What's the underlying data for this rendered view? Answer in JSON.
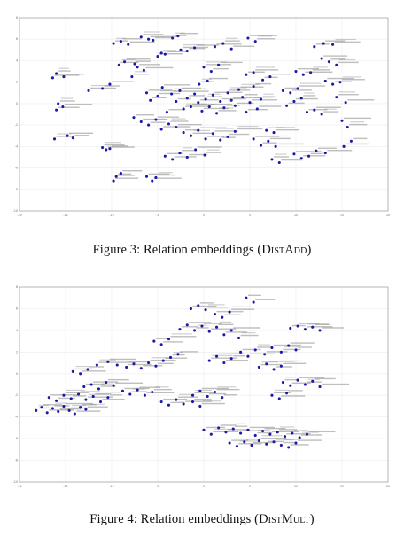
{
  "figures": [
    {
      "id": "fig3",
      "caption_prefix": "Figure 3: Relation embeddings (",
      "caption_model": "DistAdd",
      "caption_suffix": ")",
      "chart_data": {
        "type": "scatter",
        "title": "",
        "xlabel": "",
        "ylabel": "",
        "xlim": [
          -20,
          20
        ],
        "ylim": [
          -10,
          8
        ],
        "xticks": [
          -20,
          -15,
          -10,
          -5,
          0,
          5,
          10,
          15,
          20
        ],
        "yticks": [
          -10,
          -8,
          -6,
          -4,
          -2,
          0,
          2,
          4,
          6,
          8
        ],
        "grid": true,
        "marker_color": "#1a1aa6",
        "label_color": "#888888",
        "points": [
          [
            -16,
            2.8
          ],
          [
            -15.2,
            2.5
          ],
          [
            -16.4,
            2.4
          ],
          [
            -15.8,
            0.0
          ],
          [
            -16.0,
            -0.6
          ],
          [
            -15.3,
            -0.3
          ],
          [
            -16.2,
            -3.3
          ],
          [
            -14.8,
            -3.0
          ],
          [
            -14.2,
            -3.2
          ],
          [
            -11.0,
            -4.1
          ],
          [
            -10.6,
            -4.3
          ],
          [
            -10.2,
            -4.2
          ],
          [
            -9.8,
            -7.2
          ],
          [
            -9.5,
            -6.8
          ],
          [
            -9.0,
            -6.5
          ],
          [
            -12.5,
            1.2
          ],
          [
            -11.0,
            1.4
          ],
          [
            -10.2,
            1.8
          ],
          [
            -9.8,
            5.6
          ],
          [
            -9.0,
            5.8
          ],
          [
            -8.2,
            5.5
          ],
          [
            -7.8,
            2.5
          ],
          [
            -7.2,
            3.4
          ],
          [
            -6.5,
            3.1
          ],
          [
            -9.2,
            3.6
          ],
          [
            -8.6,
            3.9
          ],
          [
            -7.5,
            3.7
          ],
          [
            -6.8,
            6.2
          ],
          [
            -6.0,
            6.0
          ],
          [
            -5.5,
            5.9
          ],
          [
            -5.0,
            4.4
          ],
          [
            -4.6,
            4.7
          ],
          [
            -4.2,
            4.6
          ],
          [
            -2.5,
            5.0
          ],
          [
            -1.8,
            4.9
          ],
          [
            -1.0,
            5.2
          ],
          [
            -3.4,
            6.1
          ],
          [
            -2.8,
            6.3
          ],
          [
            1.2,
            5.3
          ],
          [
            2.1,
            5.6
          ],
          [
            3.0,
            5.1
          ],
          [
            4.8,
            6.1
          ],
          [
            5.6,
            5.8
          ],
          [
            -6.2,
            1.0
          ],
          [
            -5.8,
            0.3
          ],
          [
            -5.0,
            0.7
          ],
          [
            -4.5,
            1.5
          ],
          [
            -4.0,
            -0.8
          ],
          [
            -3.5,
            0.9
          ],
          [
            -3.0,
            0.2
          ],
          [
            -2.6,
            1.2
          ],
          [
            -2.2,
            -0.5
          ],
          [
            -1.8,
            0.5
          ],
          [
            -1.4,
            -0.3
          ],
          [
            -1.0,
            0.9
          ],
          [
            -0.6,
            0.1
          ],
          [
            -0.2,
            -0.7
          ],
          [
            0.2,
            0.4
          ],
          [
            0.6,
            -0.3
          ],
          [
            1.0,
            0.8
          ],
          [
            1.4,
            -0.9
          ],
          [
            1.8,
            0.2
          ],
          [
            2.2,
            -0.4
          ],
          [
            2.6,
            1.0
          ],
          [
            3.0,
            0.3
          ],
          [
            3.4,
            -0.2
          ],
          [
            3.8,
            1.3
          ],
          [
            4.2,
            0.6
          ],
          [
            4.6,
            -0.8
          ],
          [
            5.0,
            0.1
          ],
          [
            5.4,
            1.6
          ],
          [
            5.8,
            -0.5
          ],
          [
            6.2,
            0.4
          ],
          [
            -7.6,
            -1.3
          ],
          [
            -6.8,
            -1.7
          ],
          [
            -6.0,
            -2.0
          ],
          [
            -5.2,
            -1.5
          ],
          [
            -4.6,
            -2.4
          ],
          [
            -3.8,
            -1.9
          ],
          [
            -3.0,
            -2.2
          ],
          [
            -2.2,
            -2.7
          ],
          [
            -1.4,
            -3.0
          ],
          [
            -0.6,
            -2.5
          ],
          [
            0.2,
            -3.3
          ],
          [
            1.0,
            -2.8
          ],
          [
            1.8,
            -3.4
          ],
          [
            2.6,
            -3.1
          ],
          [
            3.4,
            -2.6
          ],
          [
            -4.2,
            -4.9
          ],
          [
            -3.4,
            -5.2
          ],
          [
            -2.6,
            -4.6
          ],
          [
            -1.8,
            -5.0
          ],
          [
            -0.9,
            -4.3
          ],
          [
            0.1,
            -4.8
          ],
          [
            -6.2,
            -6.8
          ],
          [
            -5.6,
            -7.2
          ],
          [
            -5.2,
            -6.9
          ],
          [
            5.4,
            -3.3
          ],
          [
            6.2,
            -3.9
          ],
          [
            7.0,
            -3.5
          ],
          [
            7.8,
            -4.0
          ],
          [
            6.8,
            -2.5
          ],
          [
            7.6,
            -2.7
          ],
          [
            8.6,
            1.2
          ],
          [
            9.4,
            1.0
          ],
          [
            10.2,
            1.4
          ],
          [
            9.0,
            -0.2
          ],
          [
            9.8,
            0.2
          ],
          [
            10.6,
            0.5
          ],
          [
            11.2,
            -0.8
          ],
          [
            12.0,
            -0.6
          ],
          [
            12.8,
            -1.0
          ],
          [
            10.0,
            3.0
          ],
          [
            10.8,
            2.7
          ],
          [
            11.6,
            2.9
          ],
          [
            12.8,
            4.2
          ],
          [
            13.6,
            3.9
          ],
          [
            14.4,
            3.6
          ],
          [
            13.2,
            2.1
          ],
          [
            14.0,
            1.8
          ],
          [
            14.8,
            2.0
          ],
          [
            12.0,
            5.3
          ],
          [
            13.0,
            5.6
          ],
          [
            14.0,
            5.5
          ],
          [
            9.8,
            -4.7
          ],
          [
            10.6,
            -5.1
          ],
          [
            11.4,
            -4.9
          ],
          [
            12.2,
            -4.4
          ],
          [
            13.2,
            -4.6
          ],
          [
            7.4,
            -5.2
          ],
          [
            8.2,
            -5.5
          ],
          [
            15.0,
            -1.6
          ],
          [
            15.6,
            -2.2
          ],
          [
            15.2,
            -4.0
          ],
          [
            16.0,
            -3.5
          ],
          [
            14.4,
            0.6
          ],
          [
            15.4,
            0.1
          ],
          [
            4.6,
            2.7
          ],
          [
            5.4,
            2.9
          ],
          [
            6.4,
            2.2
          ],
          [
            7.2,
            2.5
          ],
          [
            0.0,
            3.4
          ],
          [
            0.8,
            3.0
          ],
          [
            1.6,
            3.6
          ],
          [
            -0.5,
            1.8
          ],
          [
            0.4,
            2.1
          ]
        ]
      }
    },
    {
      "id": "fig4",
      "caption_prefix": "Figure 4: Relation embeddings (",
      "caption_model": "DistMult",
      "caption_suffix": ")",
      "chart_data": {
        "type": "scatter",
        "title": "",
        "xlabel": "",
        "ylabel": "",
        "xlim": [
          -20,
          20
        ],
        "ylim": [
          -10,
          8
        ],
        "xticks": [
          -20,
          -15,
          -10,
          -5,
          0,
          5,
          10,
          15,
          20
        ],
        "yticks": [
          -10,
          -8,
          -6,
          -4,
          -2,
          0,
          2,
          4,
          6,
          8
        ],
        "grid": true,
        "marker_color": "#1a1aa6",
        "label_color": "#888888",
        "points": [
          [
            -18.2,
            -3.4
          ],
          [
            -17.6,
            -3.1
          ],
          [
            -17.0,
            -3.6
          ],
          [
            -16.4,
            -3.2
          ],
          [
            -15.8,
            -3.5
          ],
          [
            -15.2,
            -3.0
          ],
          [
            -14.6,
            -3.4
          ],
          [
            -14.0,
            -3.7
          ],
          [
            -13.4,
            -3.1
          ],
          [
            -12.8,
            -3.3
          ],
          [
            -16.8,
            -2.2
          ],
          [
            -16.0,
            -2.5
          ],
          [
            -15.2,
            -2.0
          ],
          [
            -14.4,
            -2.3
          ],
          [
            -13.6,
            -1.9
          ],
          [
            -12.8,
            -2.4
          ],
          [
            -12.0,
            -2.1
          ],
          [
            -11.2,
            -2.6
          ],
          [
            -10.4,
            -2.2
          ],
          [
            -13.0,
            -1.2
          ],
          [
            -12.2,
            -1.0
          ],
          [
            -11.4,
            -1.4
          ],
          [
            -10.6,
            -0.8
          ],
          [
            -9.8,
            -1.1
          ],
          [
            -14.2,
            0.2
          ],
          [
            -13.4,
            0.0
          ],
          [
            -12.6,
            0.4
          ],
          [
            -11.6,
            0.8
          ],
          [
            -10.4,
            1.1
          ],
          [
            -9.4,
            0.8
          ],
          [
            -8.4,
            0.6
          ],
          [
            -7.6,
            0.9
          ],
          [
            -6.8,
            0.5
          ],
          [
            -6.0,
            1.0
          ],
          [
            -5.2,
            0.7
          ],
          [
            -4.4,
            1.2
          ],
          [
            -3.6,
            1.5
          ],
          [
            -2.8,
            1.8
          ],
          [
            -8.8,
            -1.6
          ],
          [
            -8.0,
            -1.9
          ],
          [
            -7.2,
            -1.5
          ],
          [
            -6.4,
            -2.0
          ],
          [
            -5.6,
            -1.7
          ],
          [
            -4.6,
            -2.6
          ],
          [
            -3.8,
            -2.9
          ],
          [
            -3.0,
            -2.4
          ],
          [
            -2.2,
            -2.8
          ],
          [
            -1.2,
            -2.6
          ],
          [
            -0.4,
            -3.0
          ],
          [
            -5.4,
            3.0
          ],
          [
            -4.6,
            2.7
          ],
          [
            -3.8,
            3.2
          ],
          [
            -2.6,
            4.1
          ],
          [
            -1.8,
            4.5
          ],
          [
            -1.0,
            4.0
          ],
          [
            -0.2,
            4.4
          ],
          [
            0.6,
            3.9
          ],
          [
            1.4,
            4.3
          ],
          [
            2.2,
            3.6
          ],
          [
            3.0,
            4.0
          ],
          [
            3.8,
            3.3
          ],
          [
            -1.4,
            6.0
          ],
          [
            -0.6,
            6.3
          ],
          [
            0.2,
            5.9
          ],
          [
            1.2,
            5.5
          ],
          [
            2.0,
            5.2
          ],
          [
            2.8,
            5.7
          ],
          [
            4.6,
            7.0
          ],
          [
            5.4,
            6.6
          ],
          [
            0.6,
            1.2
          ],
          [
            1.4,
            1.6
          ],
          [
            2.2,
            1.0
          ],
          [
            3.0,
            1.4
          ],
          [
            4.0,
            2.0
          ],
          [
            4.8,
            1.6
          ],
          [
            5.6,
            2.2
          ],
          [
            6.6,
            1.8
          ],
          [
            7.4,
            2.4
          ],
          [
            8.4,
            2.0
          ],
          [
            9.2,
            2.6
          ],
          [
            10.0,
            2.2
          ],
          [
            6.0,
            0.6
          ],
          [
            6.8,
            0.9
          ],
          [
            7.6,
            0.4
          ],
          [
            8.4,
            0.7
          ],
          [
            9.4,
            4.2
          ],
          [
            10.2,
            4.4
          ],
          [
            11.0,
            4.1
          ],
          [
            11.8,
            4.3
          ],
          [
            12.6,
            4.0
          ],
          [
            8.6,
            -0.8
          ],
          [
            9.4,
            -1.1
          ],
          [
            10.2,
            -0.6
          ],
          [
            11.0,
            -1.0
          ],
          [
            11.8,
            -0.7
          ],
          [
            12.6,
            -1.2
          ],
          [
            7.4,
            -2.0
          ],
          [
            8.2,
            -2.3
          ],
          [
            9.0,
            -1.8
          ],
          [
            -1.2,
            -2.0
          ],
          [
            -0.4,
            -1.6
          ],
          [
            0.4,
            -2.1
          ],
          [
            1.2,
            -1.7
          ],
          [
            2.0,
            -2.2
          ],
          [
            0.0,
            -5.2
          ],
          [
            0.8,
            -5.6
          ],
          [
            1.6,
            -5.0
          ],
          [
            2.4,
            -5.4
          ],
          [
            3.2,
            -5.1
          ],
          [
            4.0,
            -5.5
          ],
          [
            4.8,
            -5.2
          ],
          [
            5.6,
            -5.7
          ],
          [
            6.4,
            -5.3
          ],
          [
            7.2,
            -5.6
          ],
          [
            8.0,
            -5.4
          ],
          [
            8.8,
            -5.8
          ],
          [
            9.6,
            -5.5
          ],
          [
            10.4,
            -5.9
          ],
          [
            11.2,
            -5.6
          ],
          [
            2.8,
            -6.4
          ],
          [
            3.6,
            -6.7
          ],
          [
            4.4,
            -6.3
          ],
          [
            5.2,
            -6.6
          ],
          [
            6.0,
            -6.2
          ],
          [
            6.8,
            -6.5
          ],
          [
            7.6,
            -6.3
          ],
          [
            8.4,
            -6.6
          ],
          [
            9.2,
            -6.8
          ],
          [
            10.0,
            -6.4
          ]
        ]
      }
    }
  ]
}
